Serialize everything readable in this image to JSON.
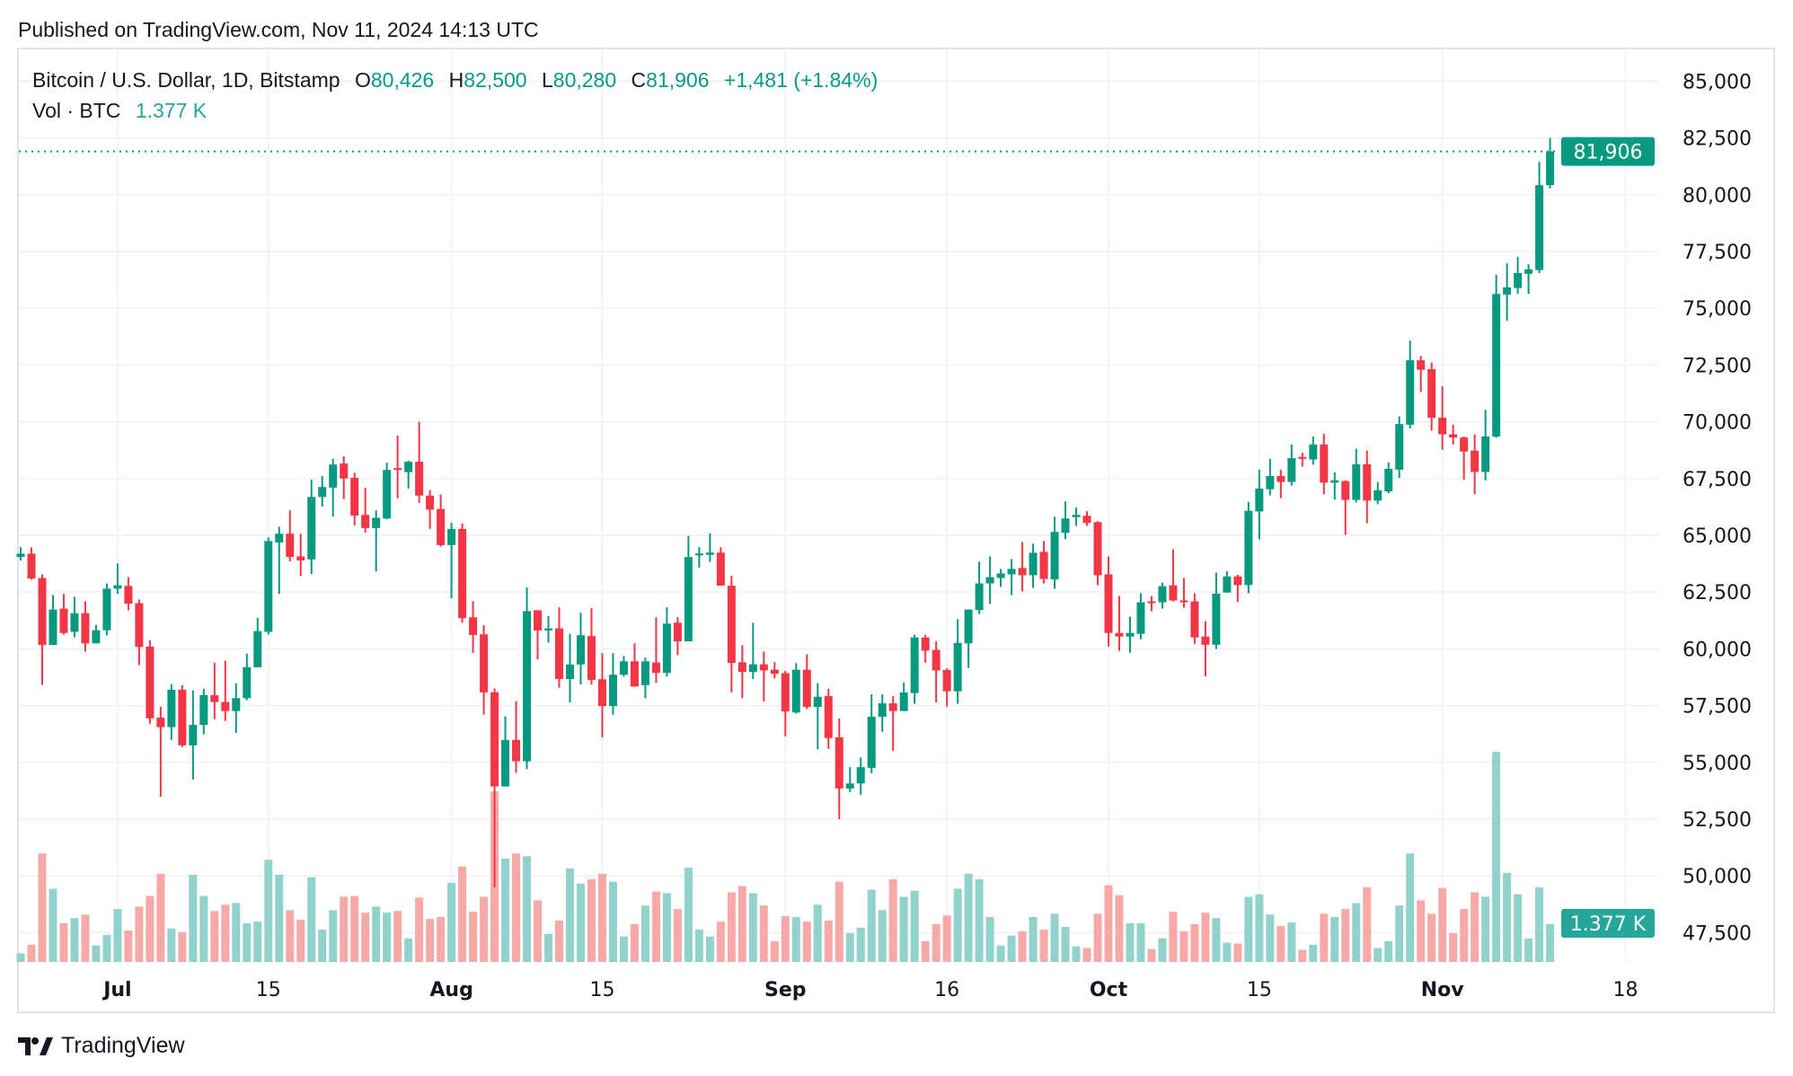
{
  "header": {
    "published": "Published on TradingView.com, Nov 11, 2024 14:13 UTC"
  },
  "legend": {
    "symbol": "Bitcoin / U.S. Dollar, 1D, Bitstamp",
    "open_label": "O",
    "open": "80,426",
    "high_label": "H",
    "high": "82,500",
    "low_label": "L",
    "low": "80,280",
    "close_label": "C",
    "close": "81,906",
    "change": "+1,481 (+1.84%)",
    "vol_label": "Vol · BTC",
    "vol_value": "1.377 K"
  },
  "price_badge": "81,906",
  "volume_badge": "1.377 K",
  "footer": {
    "brand": "TradingView"
  },
  "colors": {
    "up": "#089981",
    "down": "#f23645",
    "volume_up": "#92d2cc",
    "volume_down": "#f7a9a7",
    "grid": "#f0f3fa"
  },
  "chart_data": {
    "type": "candlestick",
    "title": "Bitcoin / U.S. Dollar, 1D, Bitstamp",
    "ylim": [
      47500,
      85000
    ],
    "grid": true,
    "y_ticks": [
      "85,000",
      "82,500",
      "80,000",
      "77,500",
      "75,000",
      "72,500",
      "70,000",
      "67,500",
      "65,000",
      "62,500",
      "60,000",
      "57,500",
      "55,000",
      "52,500",
      "50,000",
      "47,500"
    ],
    "x_ticks": [
      {
        "label": "Jul",
        "date": "2024-07-01"
      },
      {
        "label": "15",
        "date": "2024-07-15"
      },
      {
        "label": "Aug",
        "date": "2024-08-01"
      },
      {
        "label": "15",
        "date": "2024-08-15"
      },
      {
        "label": "Sep",
        "date": "2024-09-01"
      },
      {
        "label": "16",
        "date": "2024-09-16"
      },
      {
        "label": "Oct",
        "date": "2024-10-01"
      },
      {
        "label": "15",
        "date": "2024-10-15"
      },
      {
        "label": "Nov",
        "date": "2024-11-01"
      },
      {
        "label": "18",
        "date": "2024-11-18"
      }
    ],
    "last_price": 81906,
    "columns": [
      "date",
      "open",
      "high",
      "low",
      "close",
      "volume_k_btc"
    ],
    "candles": [
      [
        "2024-06-22",
        64050,
        64470,
        63890,
        64190,
        0.31
      ],
      [
        "2024-06-23",
        64190,
        64470,
        63050,
        63095,
        0.63
      ],
      [
        "2024-06-24",
        63120,
        63280,
        58420,
        60170,
        3.96
      ],
      [
        "2024-06-25",
        60170,
        62370,
        60170,
        61730,
        2.67
      ],
      [
        "2024-06-26",
        61770,
        62420,
        60630,
        60700,
        1.41
      ],
      [
        "2024-06-27",
        60750,
        62290,
        60510,
        61570,
        1.6
      ],
      [
        "2024-06-28",
        61570,
        62090,
        59880,
        60240,
        1.73
      ],
      [
        "2024-06-29",
        60240,
        61060,
        60240,
        60820,
        0.6
      ],
      [
        "2024-06-30",
        60820,
        62880,
        60590,
        62650,
        0.99
      ],
      [
        "2024-07-01",
        62650,
        63760,
        62420,
        62800,
        1.93
      ],
      [
        "2024-07-02",
        62770,
        63160,
        61700,
        61990,
        1.15
      ],
      [
        "2024-07-03",
        62010,
        62170,
        59280,
        60080,
        2.02
      ],
      [
        "2024-07-04",
        60100,
        60380,
        56700,
        56940,
        2.41
      ],
      [
        "2024-07-05",
        56970,
        57450,
        53490,
        56550,
        3.22
      ],
      [
        "2024-07-06",
        56550,
        58440,
        55990,
        58200,
        1.22
      ],
      [
        "2024-07-07",
        58200,
        58400,
        55670,
        55750,
        1.09
      ],
      [
        "2024-07-08",
        55750,
        58160,
        54240,
        56650,
        3.18
      ],
      [
        "2024-07-09",
        56650,
        58240,
        56230,
        57960,
        2.41
      ],
      [
        "2024-07-10",
        57960,
        59390,
        56900,
        57660,
        1.86
      ],
      [
        "2024-07-11",
        57660,
        59480,
        56820,
        57260,
        2.09
      ],
      [
        "2024-07-12",
        57260,
        58480,
        56300,
        57830,
        2.15
      ],
      [
        "2024-07-13",
        57830,
        59790,
        57740,
        59190,
        1.41
      ],
      [
        "2024-07-14",
        59190,
        61370,
        59190,
        60780,
        1.47
      ],
      [
        "2024-07-15",
        60750,
        64910,
        60630,
        64750,
        3.73
      ],
      [
        "2024-07-16",
        64680,
        65380,
        62420,
        65070,
        3.18
      ],
      [
        "2024-07-17",
        65070,
        66100,
        63850,
        64050,
        1.89
      ],
      [
        "2024-07-18",
        64070,
        65070,
        63210,
        63890,
        1.54
      ],
      [
        "2024-07-19",
        63940,
        67450,
        63290,
        66690,
        3.09
      ],
      [
        "2024-07-20",
        66690,
        67610,
        66270,
        67130,
        1.18
      ],
      [
        "2024-07-21",
        67100,
        68360,
        65830,
        68120,
        1.89
      ],
      [
        "2024-07-22",
        68160,
        68480,
        66590,
        67500,
        2.38
      ],
      [
        "2024-07-23",
        67530,
        67760,
        65440,
        65870,
        2.41
      ],
      [
        "2024-07-24",
        65900,
        67090,
        65120,
        65320,
        1.8
      ],
      [
        "2024-07-25",
        65320,
        66100,
        63410,
        65770,
        2.02
      ],
      [
        "2024-07-26",
        65740,
        68200,
        65710,
        67880,
        1.8
      ],
      [
        "2024-07-27",
        67960,
        69390,
        66630,
        67900,
        1.86
      ],
      [
        "2024-07-28",
        67780,
        68280,
        67060,
        68240,
        0.86
      ],
      [
        "2024-07-29",
        68240,
        70000,
        66430,
        66750,
        2.35
      ],
      [
        "2024-07-30",
        66750,
        66990,
        65280,
        66130,
        1.57
      ],
      [
        "2024-07-31",
        66160,
        66800,
        64500,
        64570,
        1.64
      ],
      [
        "2024-08-01",
        64570,
        65560,
        62230,
        65280,
        2.89
      ],
      [
        "2024-08-02",
        65280,
        65520,
        61150,
        61350,
        3.48
      ],
      [
        "2024-08-03",
        61390,
        62100,
        59820,
        60610,
        1.83
      ],
      [
        "2024-08-04",
        60640,
        61040,
        57100,
        58080,
        2.38
      ],
      [
        "2024-08-05",
        58090,
        58260,
        49500,
        53940,
        6.23
      ],
      [
        "2024-08-06",
        53940,
        57030,
        53940,
        55990,
        3.77
      ],
      [
        "2024-08-07",
        55990,
        57690,
        54530,
        55050,
        3.96
      ],
      [
        "2024-08-08",
        55050,
        62700,
        54700,
        61660,
        3.86
      ],
      [
        "2024-08-09",
        61700,
        61700,
        59540,
        60810,
        2.25
      ],
      [
        "2024-08-10",
        60810,
        61440,
        60270,
        60900,
        1.02
      ],
      [
        "2024-08-11",
        60900,
        61830,
        58290,
        58670,
        1.51
      ],
      [
        "2024-08-12",
        58670,
        60670,
        57640,
        59310,
        3.41
      ],
      [
        "2024-08-13",
        59310,
        61590,
        58430,
        60600,
        2.86
      ],
      [
        "2024-08-14",
        60560,
        61790,
        58430,
        58630,
        3.02
      ],
      [
        "2024-08-15",
        58660,
        59810,
        56100,
        57480,
        3.22
      ],
      [
        "2024-08-16",
        57480,
        59810,
        57100,
        58860,
        2.93
      ],
      [
        "2024-08-17",
        58860,
        59680,
        58780,
        59450,
        0.93
      ],
      [
        "2024-08-18",
        59450,
        60240,
        58340,
        58340,
        1.38
      ],
      [
        "2024-08-19",
        58400,
        59610,
        57830,
        59450,
        2.06
      ],
      [
        "2024-08-20",
        59400,
        61390,
        58500,
        58940,
        2.57
      ],
      [
        "2024-08-21",
        58940,
        61830,
        58780,
        61110,
        2.51
      ],
      [
        "2024-08-22",
        61150,
        61390,
        59720,
        60330,
        1.93
      ],
      [
        "2024-08-23",
        60330,
        64970,
        60330,
        64040,
        3.44
      ],
      [
        "2024-08-24",
        64130,
        64480,
        63580,
        64200,
        1.18
      ],
      [
        "2024-08-25",
        64140,
        65080,
        63830,
        64240,
        0.93
      ],
      [
        "2024-08-26",
        64240,
        64480,
        62780,
        62780,
        1.47
      ],
      [
        "2024-08-27",
        62780,
        63220,
        58080,
        59380,
        2.54
      ],
      [
        "2024-08-28",
        59410,
        60160,
        57830,
        58980,
        2.77
      ],
      [
        "2024-08-29",
        58980,
        61150,
        58670,
        59320,
        2.51
      ],
      [
        "2024-08-30",
        59320,
        59880,
        57680,
        59050,
        2.06
      ],
      [
        "2024-08-31",
        59080,
        59410,
        58700,
        58900,
        0.76
      ],
      [
        "2024-09-01",
        58930,
        59030,
        56150,
        57240,
        1.67
      ],
      [
        "2024-09-02",
        57200,
        59370,
        57150,
        59080,
        1.64
      ],
      [
        "2024-09-03",
        59080,
        59760,
        57350,
        57440,
        1.47
      ],
      [
        "2024-09-04",
        57440,
        58490,
        55570,
        57890,
        2.09
      ],
      [
        "2024-09-05",
        57920,
        58240,
        55590,
        56070,
        1.51
      ],
      [
        "2024-09-06",
        56100,
        56930,
        52500,
        53850,
        2.93
      ],
      [
        "2024-09-07",
        53850,
        54790,
        53690,
        54070,
        1.05
      ],
      [
        "2024-09-08",
        54070,
        55220,
        53570,
        54790,
        1.25
      ],
      [
        "2024-09-09",
        54760,
        58000,
        54520,
        57010,
        2.64
      ],
      [
        "2024-09-10",
        57010,
        58000,
        56350,
        57600,
        1.89
      ],
      [
        "2024-09-11",
        57600,
        57920,
        55500,
        57260,
        3.02
      ],
      [
        "2024-09-12",
        57260,
        58520,
        57260,
        58080,
        2.38
      ],
      [
        "2024-09-13",
        58050,
        60620,
        57580,
        60500,
        2.6
      ],
      [
        "2024-09-14",
        60500,
        60620,
        59390,
        59920,
        0.76
      ],
      [
        "2024-09-15",
        59950,
        60340,
        57640,
        59050,
        1.38
      ],
      [
        "2024-09-16",
        59070,
        59150,
        57460,
        58130,
        1.7
      ],
      [
        "2024-09-17",
        58130,
        61300,
        57580,
        60260,
        2.67
      ],
      [
        "2024-09-18",
        60240,
        61730,
        59150,
        61730,
        3.22
      ],
      [
        "2024-09-19",
        61710,
        63840,
        61530,
        62880,
        3.02
      ],
      [
        "2024-09-20",
        62880,
        64070,
        61980,
        63160,
        1.64
      ],
      [
        "2024-09-21",
        63120,
        63520,
        62730,
        63320,
        0.6
      ],
      [
        "2024-09-22",
        63280,
        63950,
        62370,
        63520,
        0.96
      ],
      [
        "2024-09-23",
        63560,
        64710,
        62530,
        63240,
        1.12
      ],
      [
        "2024-09-24",
        63240,
        64630,
        62680,
        64230,
        1.64
      ],
      [
        "2024-09-25",
        64270,
        64750,
        62880,
        63080,
        1.18
      ],
      [
        "2024-09-26",
        63060,
        65820,
        62640,
        65150,
        1.76
      ],
      [
        "2024-09-27",
        65110,
        66490,
        64830,
        65740,
        1.28
      ],
      [
        "2024-09-28",
        65800,
        66220,
        65420,
        65900,
        0.57
      ],
      [
        "2024-09-29",
        65860,
        66060,
        65420,
        65540,
        0.51
      ],
      [
        "2024-09-30",
        65580,
        65620,
        62800,
        63240,
        1.76
      ],
      [
        "2024-10-01",
        63280,
        64070,
        60100,
        60700,
        2.8
      ],
      [
        "2024-10-02",
        60700,
        62330,
        59910,
        60540,
        2.44
      ],
      [
        "2024-10-03",
        60540,
        61410,
        59830,
        60700,
        1.41
      ],
      [
        "2024-10-04",
        60660,
        62450,
        60420,
        62050,
        1.41
      ],
      [
        "2024-10-05",
        62090,
        62330,
        61650,
        62050,
        0.47
      ],
      [
        "2024-10-06",
        62050,
        62920,
        61770,
        62760,
        0.86
      ],
      [
        "2024-10-07",
        62800,
        64390,
        62090,
        62130,
        1.83
      ],
      [
        "2024-10-08",
        62130,
        63120,
        61810,
        62050,
        1.12
      ],
      [
        "2024-10-09",
        62090,
        62450,
        60220,
        60500,
        1.38
      ],
      [
        "2024-10-10",
        60540,
        61220,
        58790,
        60180,
        1.8
      ],
      [
        "2024-10-11",
        60180,
        63360,
        59990,
        62430,
        1.6
      ],
      [
        "2024-10-12",
        62480,
        63420,
        62480,
        63190,
        0.7
      ],
      [
        "2024-10-13",
        63190,
        63260,
        62060,
        62810,
        0.67
      ],
      [
        "2024-10-14",
        62810,
        66470,
        62450,
        66080,
        2.38
      ],
      [
        "2024-10-15",
        66050,
        67890,
        64820,
        67060,
        2.47
      ],
      [
        "2024-10-16",
        67030,
        68370,
        66760,
        67610,
        1.73
      ],
      [
        "2024-10-17",
        67610,
        67890,
        66640,
        67350,
        1.31
      ],
      [
        "2024-10-18",
        67350,
        69000,
        67190,
        68400,
        1.44
      ],
      [
        "2024-10-19",
        68450,
        68640,
        68030,
        68400,
        0.44
      ],
      [
        "2024-10-20",
        68340,
        69350,
        68110,
        69000,
        0.63
      ],
      [
        "2024-10-21",
        69000,
        69470,
        66800,
        67320,
        1.76
      ],
      [
        "2024-10-22",
        67320,
        67770,
        66560,
        67420,
        1.64
      ],
      [
        "2024-10-23",
        67390,
        67420,
        65020,
        66560,
        1.93
      ],
      [
        "2024-10-24",
        66560,
        68810,
        66450,
        68130,
        2.15
      ],
      [
        "2024-10-25",
        68130,
        68730,
        65530,
        66530,
        2.73
      ],
      [
        "2024-10-26",
        66530,
        67350,
        66370,
        66980,
        0.51
      ],
      [
        "2024-10-27",
        66930,
        68210,
        66850,
        67930,
        0.76
      ],
      [
        "2024-10-28",
        67890,
        70240,
        67530,
        69900,
        2.06
      ],
      [
        "2024-10-29",
        69870,
        73580,
        69710,
        72710,
        3.96
      ],
      [
        "2024-10-30",
        72710,
        72900,
        71310,
        72290,
        2.25
      ],
      [
        "2024-10-31",
        72320,
        72610,
        69610,
        70180,
        1.76
      ],
      [
        "2024-11-01",
        70180,
        71560,
        68770,
        69450,
        2.7
      ],
      [
        "2024-11-02",
        69450,
        69870,
        69000,
        69310,
        1.05
      ],
      [
        "2024-11-03",
        69310,
        69350,
        67450,
        68690,
        1.93
      ],
      [
        "2024-11-04",
        68730,
        69440,
        66810,
        67790,
        2.54
      ],
      [
        "2024-11-05",
        67790,
        70530,
        67420,
        69350,
        2.38
      ],
      [
        "2024-11-06",
        69350,
        76470,
        69290,
        75630,
        7.67
      ],
      [
        "2024-11-07",
        75600,
        76980,
        74450,
        75920,
        3.25
      ],
      [
        "2024-11-08",
        75890,
        77260,
        75630,
        76550,
        2.47
      ],
      [
        "2024-11-09",
        76520,
        76940,
        75630,
        76710,
        0.86
      ],
      [
        "2024-11-10",
        76680,
        81450,
        76550,
        80420,
        2.73
      ],
      [
        "2024-11-11",
        80426,
        82500,
        80280,
        81906,
        1.377
      ]
    ]
  }
}
